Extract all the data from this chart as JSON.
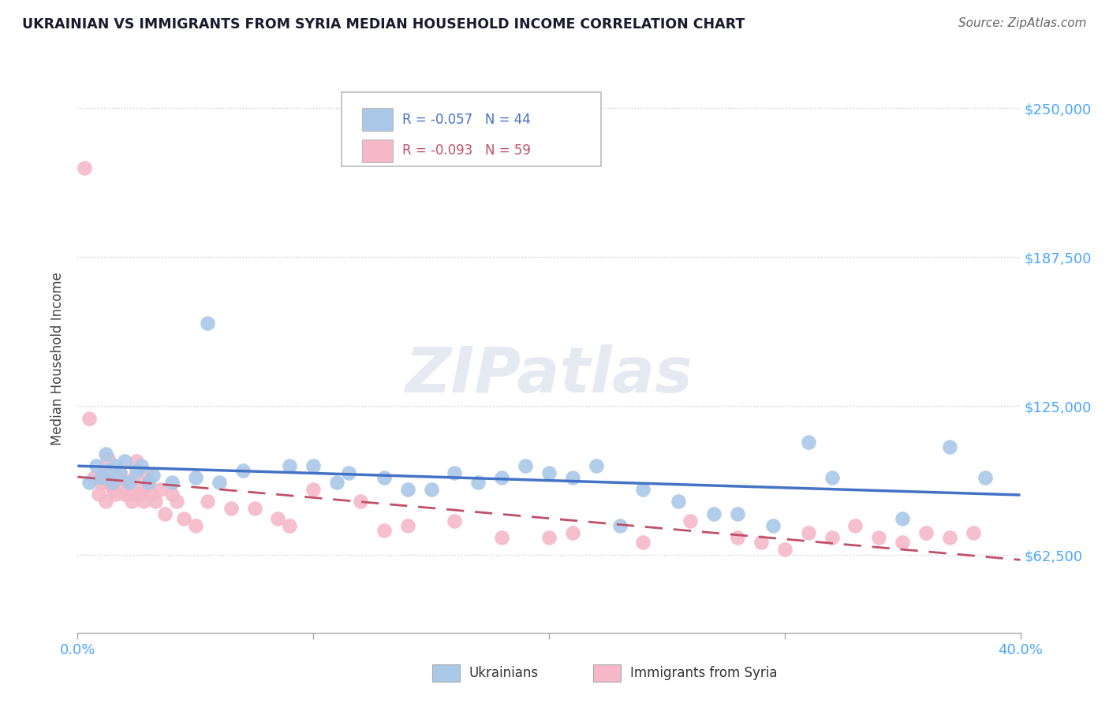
{
  "title": "UKRAINIAN VS IMMIGRANTS FROM SYRIA MEDIAN HOUSEHOLD INCOME CORRELATION CHART",
  "source": "Source: ZipAtlas.com",
  "ylabel": "Median Household Income",
  "xlim": [
    0.0,
    0.4
  ],
  "ylim": [
    30000,
    260000
  ],
  "yticks": [
    62500,
    125000,
    187500,
    250000
  ],
  "ytick_labels": [
    "$62,500",
    "$125,000",
    "$187,500",
    "$250,000"
  ],
  "xticks": [
    0.0,
    0.1,
    0.2,
    0.3,
    0.4
  ],
  "xtick_labels": [
    "0.0%",
    "",
    "",
    "",
    "40.0%"
  ],
  "series1_label": "Ukrainians",
  "series1_R": -0.057,
  "series1_N": 44,
  "series1_color": "#aac8e8",
  "series1_edge_color": "#aac8e8",
  "series1_line_color": "#4472c4",
  "series2_label": "Immigrants from Syria",
  "series2_R": -0.093,
  "series2_N": 59,
  "series2_color": "#f4b8c8",
  "series2_edge_color": "#f4b8c8",
  "series2_line_color": "#c0506a",
  "background_color": "#ffffff",
  "watermark": "ZIPatlas",
  "grid_color": "#cccccc",
  "series1_x": [
    0.005,
    0.008,
    0.01,
    0.012,
    0.013,
    0.015,
    0.016,
    0.018,
    0.02,
    0.022,
    0.025,
    0.027,
    0.03,
    0.032,
    0.04,
    0.05,
    0.055,
    0.06,
    0.07,
    0.09,
    0.1,
    0.11,
    0.115,
    0.13,
    0.14,
    0.15,
    0.16,
    0.17,
    0.18,
    0.19,
    0.2,
    0.21,
    0.22,
    0.23,
    0.24,
    0.255,
    0.27,
    0.28,
    0.295,
    0.31,
    0.32,
    0.35,
    0.37,
    0.385
  ],
  "series1_y": [
    93000,
    100000,
    95000,
    105000,
    98000,
    93000,
    100000,
    97000,
    102000,
    93000,
    98000,
    100000,
    93000,
    96000,
    93000,
    95000,
    160000,
    93000,
    98000,
    100000,
    100000,
    93000,
    97000,
    95000,
    90000,
    90000,
    97000,
    93000,
    95000,
    100000,
    97000,
    95000,
    100000,
    75000,
    90000,
    85000,
    80000,
    80000,
    75000,
    110000,
    95000,
    78000,
    108000,
    95000
  ],
  "series2_x": [
    0.003,
    0.005,
    0.007,
    0.009,
    0.01,
    0.011,
    0.012,
    0.013,
    0.014,
    0.015,
    0.016,
    0.017,
    0.018,
    0.019,
    0.02,
    0.021,
    0.022,
    0.023,
    0.024,
    0.025,
    0.026,
    0.027,
    0.028,
    0.029,
    0.03,
    0.031,
    0.033,
    0.035,
    0.037,
    0.04,
    0.042,
    0.045,
    0.05,
    0.055,
    0.065,
    0.075,
    0.085,
    0.09,
    0.1,
    0.12,
    0.13,
    0.14,
    0.16,
    0.18,
    0.2,
    0.21,
    0.24,
    0.26,
    0.28,
    0.29,
    0.3,
    0.31,
    0.32,
    0.33,
    0.34,
    0.35,
    0.36,
    0.37,
    0.38
  ],
  "series2_y": [
    225000,
    120000,
    95000,
    88000,
    93000,
    97000,
    85000,
    103000,
    92000,
    90000,
    88000,
    95000,
    97000,
    90000,
    88000,
    93000,
    88000,
    85000,
    95000,
    102000,
    88000,
    90000,
    85000,
    97000,
    92000,
    88000,
    85000,
    90000,
    80000,
    88000,
    85000,
    78000,
    75000,
    85000,
    82000,
    82000,
    78000,
    75000,
    90000,
    85000,
    73000,
    75000,
    77000,
    70000,
    70000,
    72000,
    68000,
    77000,
    70000,
    68000,
    65000,
    72000,
    70000,
    75000,
    70000,
    68000,
    72000,
    70000,
    72000
  ]
}
